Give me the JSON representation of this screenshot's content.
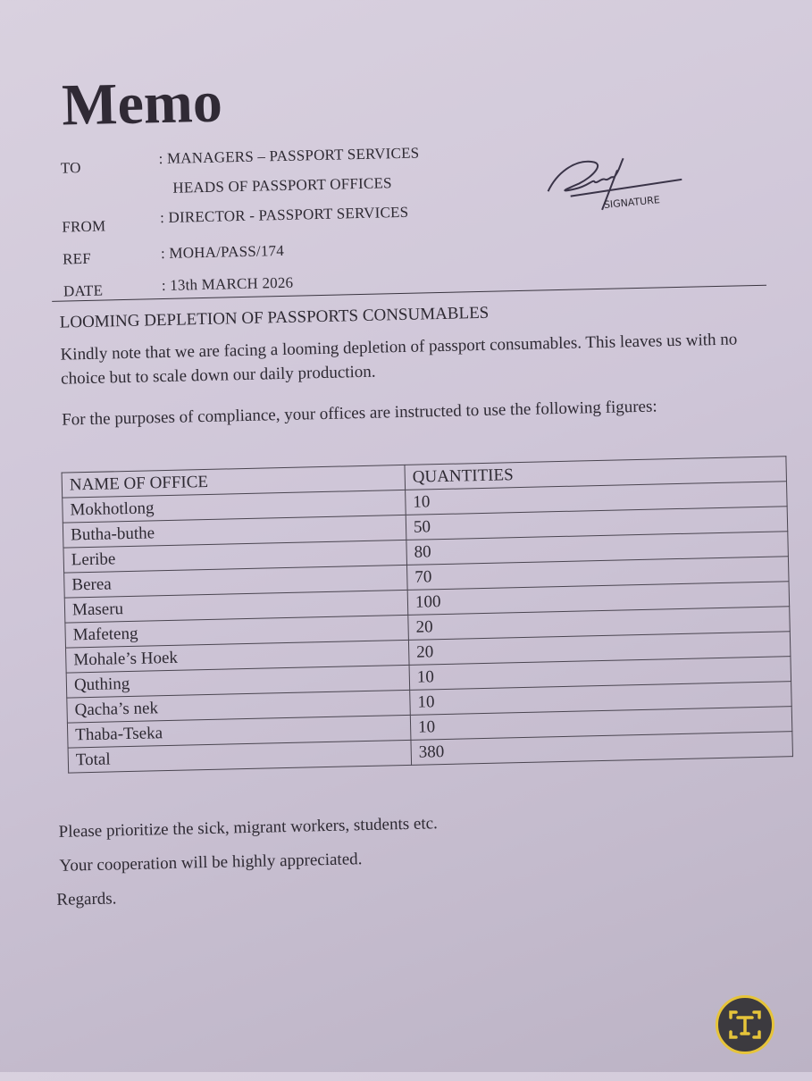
{
  "memo": {
    "title": "Memo",
    "header": [
      {
        "label": "TO",
        "value": ": MANAGERS – PASSPORT SERVICES"
      },
      {
        "label": "",
        "value": "HEADS OF PASSPORT OFFICES"
      },
      {
        "label": "FROM",
        "value": ": DIRECTOR - PASSPORT SERVICES"
      },
      {
        "label": "REF",
        "value": ": MOHA/PASS/174"
      },
      {
        "label": "DATE",
        "value": ": 13th MARCH 2026"
      }
    ],
    "signature_label": "SIGNATURE",
    "subject": "LOOMING DEPLETION OF PASSPORTS CONSUMABLES",
    "paragraphs": [
      "Kindly note that we are facing a looming depletion of passport consumables. This leaves us with no choice but to scale down our daily production.",
      "For the purposes of compliance, your offices are instructed to use the following figures:"
    ],
    "table": {
      "headers": [
        "NAME OF OFFICE",
        "QUANTITIES"
      ],
      "rows": [
        [
          "Mokhotlong",
          "10"
        ],
        [
          "Butha-buthe",
          "50"
        ],
        [
          "Leribe",
          "80"
        ],
        [
          "Berea",
          "70"
        ],
        [
          "Maseru",
          "100"
        ],
        [
          "Mafeteng",
          "20"
        ],
        [
          "Mohale’s Hoek",
          "20"
        ],
        [
          "Quthing",
          "10"
        ],
        [
          "Qacha’s nek",
          "10"
        ],
        [
          "Thaba-Tseka",
          "10"
        ],
        [
          "Total",
          "380"
        ]
      ]
    },
    "closing": [
      "Please prioritize the sick, migrant workers, students etc.",
      "Your cooperation will be highly appreciated.",
      "Regards."
    ]
  },
  "overlay": {
    "icon": "text-scan-icon",
    "accent": "#e6c43a"
  }
}
